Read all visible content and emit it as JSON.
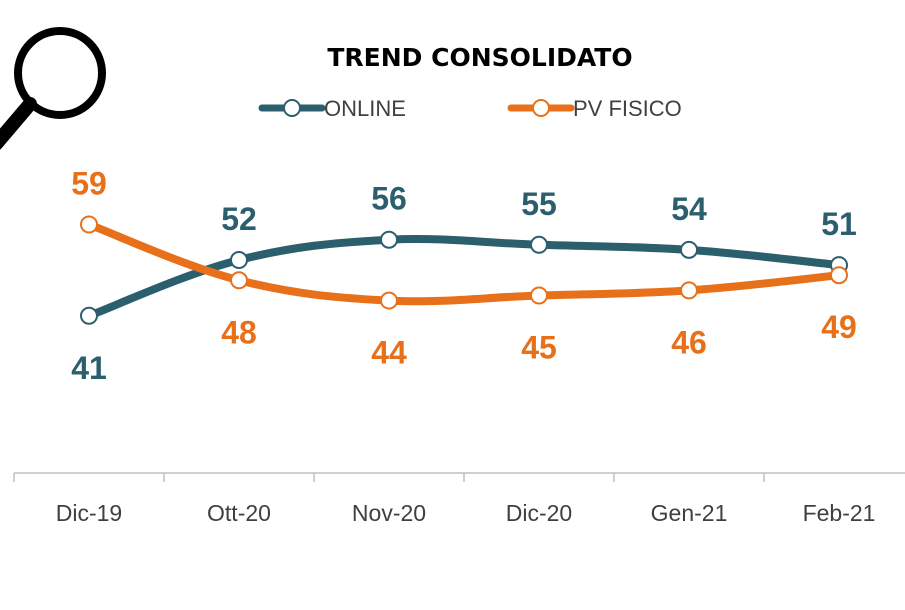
{
  "colors": {
    "online": "#2b5f6e",
    "pv_fisico": "#e8701a",
    "axis": "#bfbfbf",
    "text": "#404040"
  },
  "icons": {
    "magnifier": "magnifier-icon"
  },
  "chart_data": {
    "type": "line",
    "title": "TREND CONSOLIDATO",
    "categories": [
      "Dic-19",
      "Ott-20",
      "Nov-20",
      "Dic-20",
      "Gen-21",
      "Feb-21"
    ],
    "series": [
      {
        "name": "ONLINE",
        "values": [
          41,
          52,
          56,
          55,
          54,
          51
        ]
      },
      {
        "name": "PV FISICO",
        "values": [
          59,
          48,
          44,
          45,
          46,
          49
        ]
      }
    ],
    "legend_position": "top",
    "grid": false,
    "smooth": true,
    "ylim": [
      10,
      80
    ]
  }
}
